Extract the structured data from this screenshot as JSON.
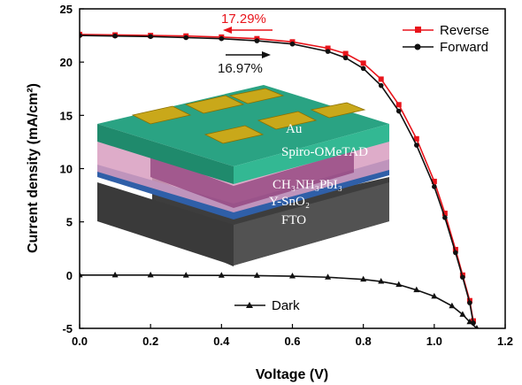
{
  "chart_data": {
    "type": "line",
    "xlabel": "Voltage (V)",
    "ylabel": "Current density (mA/cm²)",
    "xlim": [
      0,
      1.2
    ],
    "ylim": [
      -5,
      25
    ],
    "x_ticks": [
      "0.0",
      "0.2",
      "0.4",
      "0.6",
      "0.8",
      "1.0",
      "1.2"
    ],
    "y_ticks": [
      "-5",
      "0",
      "5",
      "10",
      "15",
      "20",
      "25"
    ],
    "grid": false,
    "legend_placement": "top-right",
    "series": [
      {
        "name": "Reverse",
        "color": "#e8141b",
        "marker": "square",
        "points": [
          [
            0,
            22.6
          ],
          [
            0.1,
            22.55
          ],
          [
            0.2,
            22.5
          ],
          [
            0.3,
            22.45
          ],
          [
            0.4,
            22.35
          ],
          [
            0.5,
            22.2
          ],
          [
            0.6,
            21.9
          ],
          [
            0.7,
            21.3
          ],
          [
            0.75,
            20.8
          ],
          [
            0.8,
            19.9
          ],
          [
            0.85,
            18.4
          ],
          [
            0.9,
            16.0
          ],
          [
            0.95,
            12.8
          ],
          [
            1.0,
            8.8
          ],
          [
            1.03,
            5.8
          ],
          [
            1.06,
            2.4
          ],
          [
            1.08,
            0.0
          ],
          [
            1.1,
            -2.4
          ],
          [
            1.11,
            -4.3
          ]
        ]
      },
      {
        "name": "Forward",
        "color": "#111111",
        "marker": "circle",
        "points": [
          [
            0,
            22.5
          ],
          [
            0.1,
            22.45
          ],
          [
            0.2,
            22.4
          ],
          [
            0.3,
            22.3
          ],
          [
            0.4,
            22.2
          ],
          [
            0.5,
            22.0
          ],
          [
            0.6,
            21.7
          ],
          [
            0.7,
            21.0
          ],
          [
            0.75,
            20.4
          ],
          [
            0.8,
            19.4
          ],
          [
            0.85,
            17.8
          ],
          [
            0.9,
            15.4
          ],
          [
            0.95,
            12.2
          ],
          [
            1.0,
            8.3
          ],
          [
            1.03,
            5.4
          ],
          [
            1.06,
            2.1
          ],
          [
            1.08,
            -0.2
          ],
          [
            1.1,
            -2.6
          ],
          [
            1.11,
            -4.5
          ]
        ]
      },
      {
        "name": "Dark",
        "color": "#111111",
        "marker": "triangle",
        "points": [
          [
            0,
            0
          ],
          [
            0.1,
            0
          ],
          [
            0.2,
            0
          ],
          [
            0.3,
            -0.02
          ],
          [
            0.4,
            -0.03
          ],
          [
            0.5,
            -0.05
          ],
          [
            0.6,
            -0.1
          ],
          [
            0.7,
            -0.2
          ],
          [
            0.8,
            -0.4
          ],
          [
            0.85,
            -0.6
          ],
          [
            0.9,
            -0.9
          ],
          [
            0.95,
            -1.4
          ],
          [
            1.0,
            -2.0
          ],
          [
            1.05,
            -2.9
          ],
          [
            1.08,
            -3.7
          ],
          [
            1.1,
            -4.4
          ],
          [
            1.12,
            -5.0
          ]
        ]
      }
    ],
    "annotations": [
      {
        "text": "17.29%",
        "color": "#e8141b",
        "arrow": "left"
      },
      {
        "text": "16.97%",
        "color": "#111111",
        "arrow": "right"
      }
    ],
    "inset": {
      "layers": [
        "Au",
        "Spiro-OMeTAD",
        "CH₃NH₃PbI₃",
        "Y-SnO₂",
        "FTO"
      ],
      "colors": {
        "au": "#c9a81a",
        "spiro": "#2aa383",
        "perovskite": "#d89ec0",
        "sno2": "#2f5fa8",
        "fto": "#3a3a3a"
      }
    }
  }
}
